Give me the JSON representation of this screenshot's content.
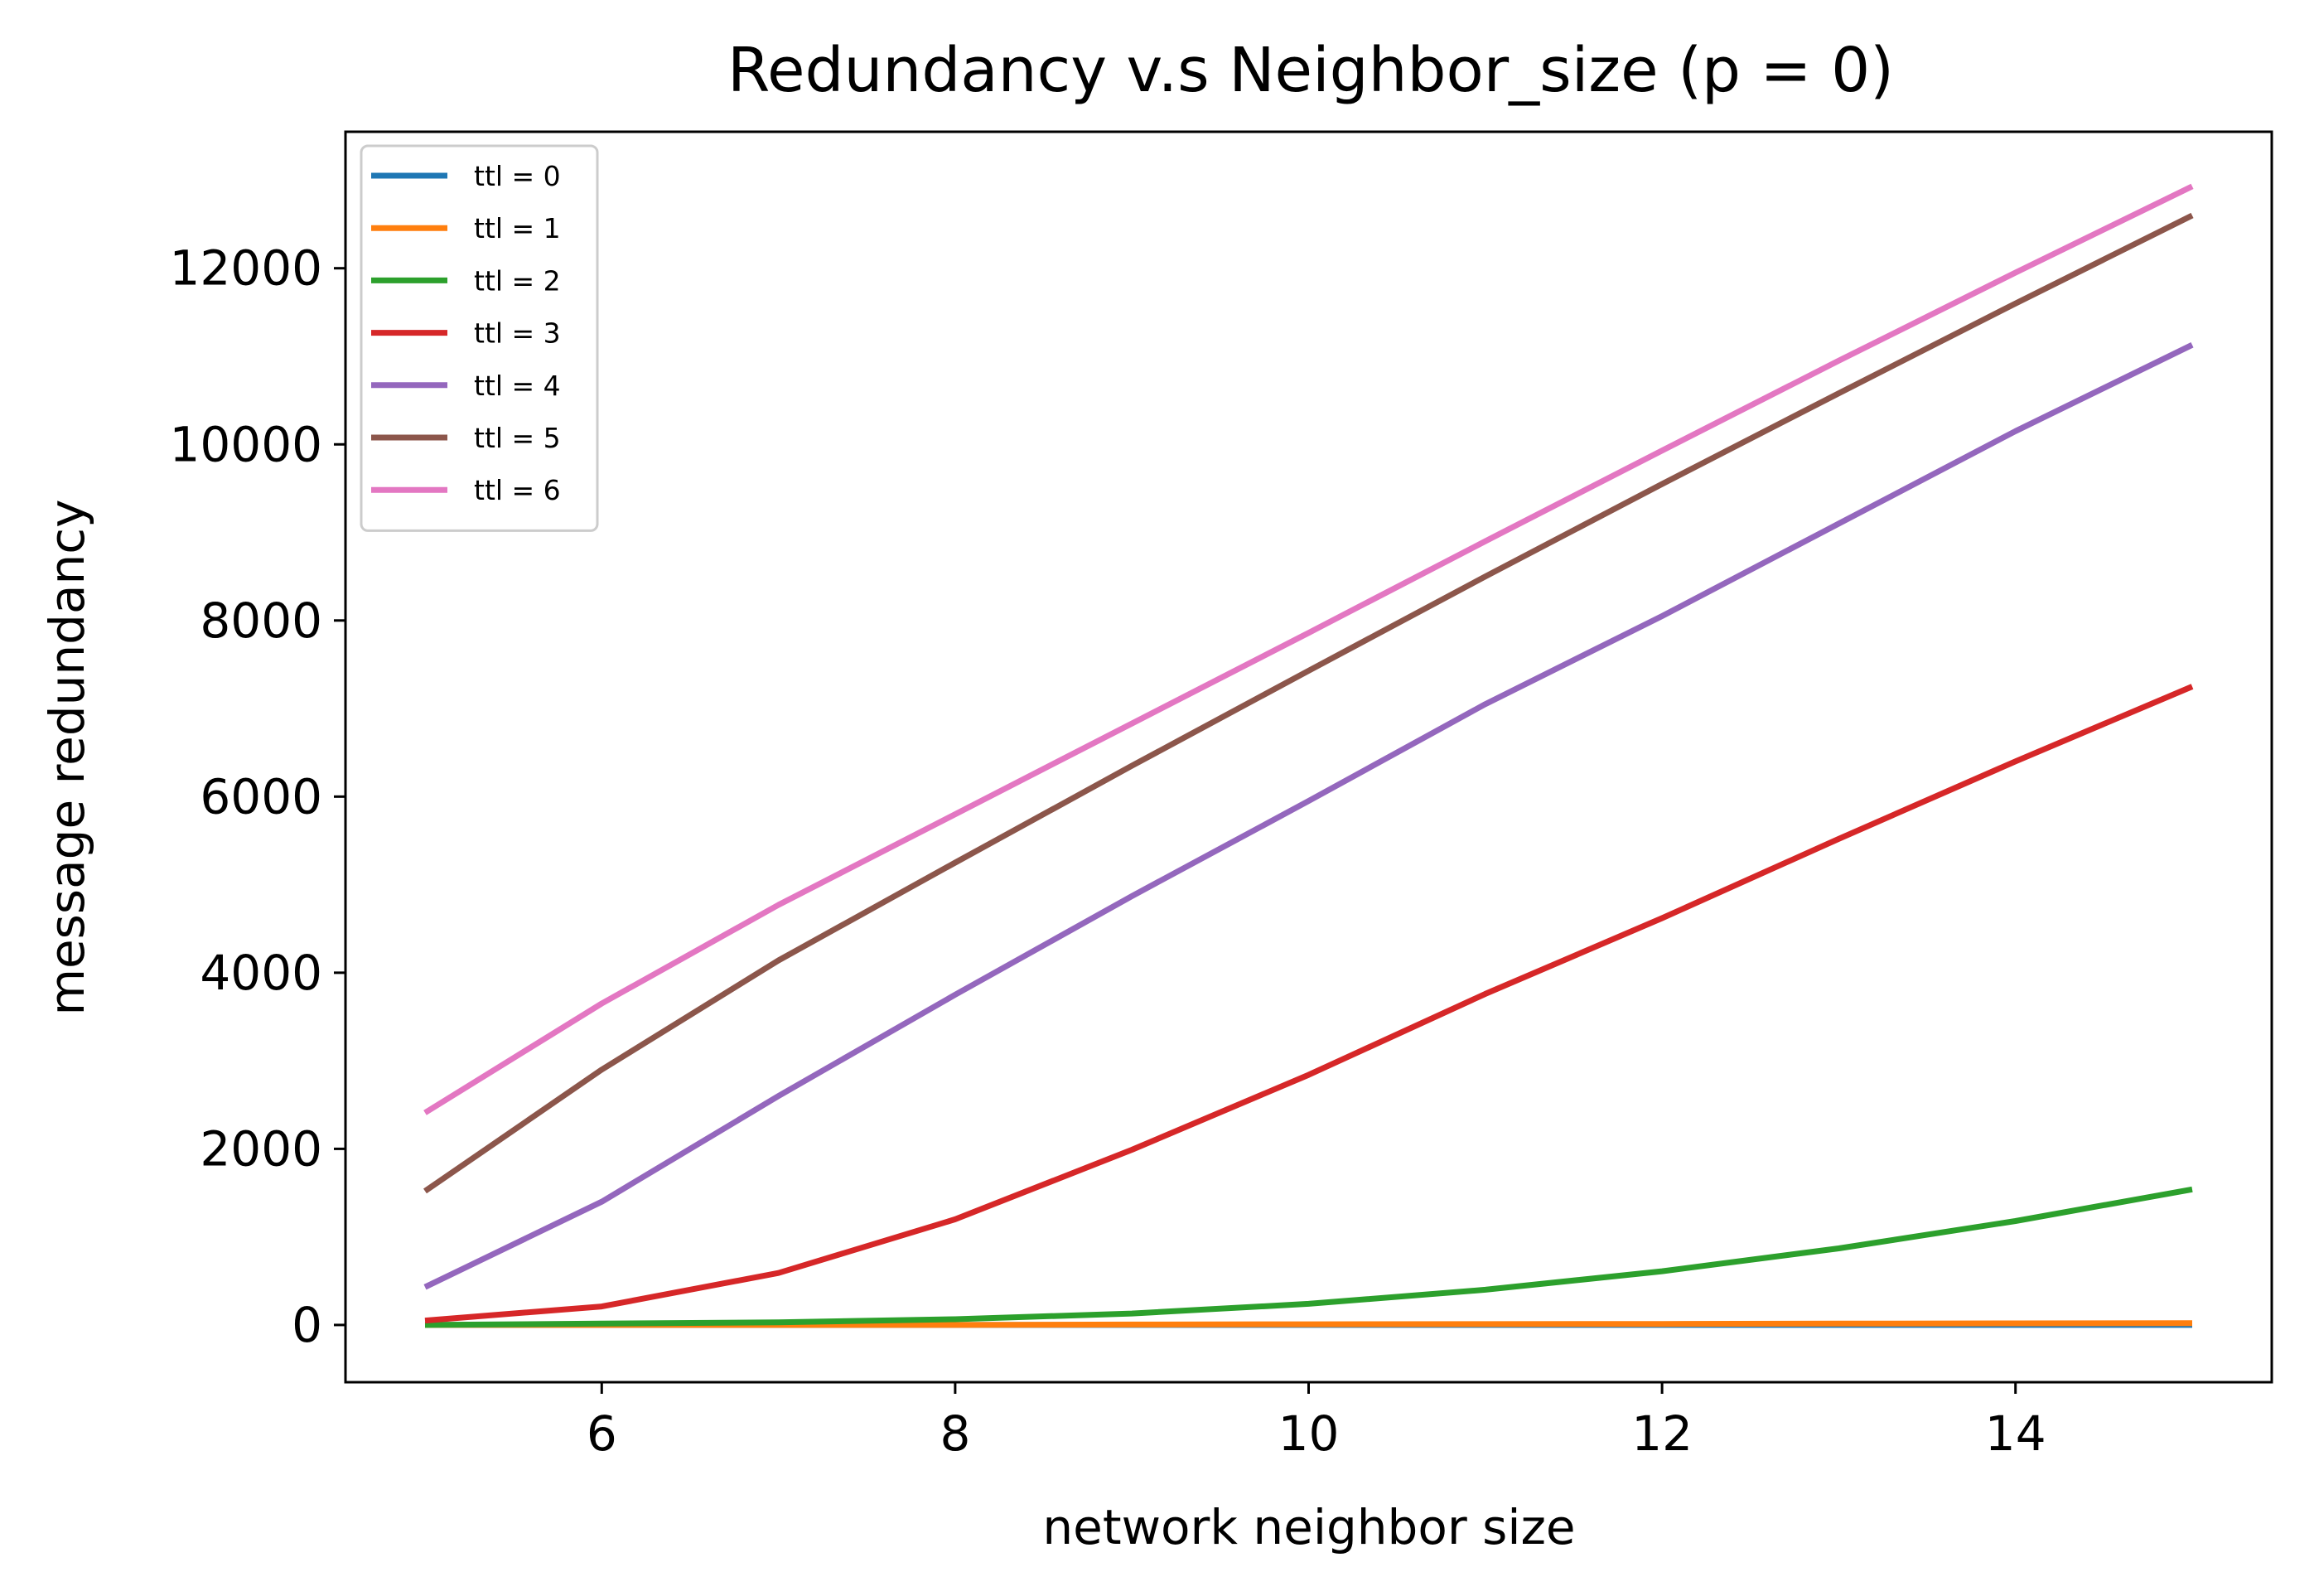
{
  "chart_data": {
    "type": "line",
    "title": "Redundancy v.s Neighbor_size (p = 0)",
    "xlabel": "network neighbor size",
    "ylabel": "message redundancy",
    "x": [
      5,
      6,
      7,
      8,
      9,
      10,
      11,
      12,
      13,
      14,
      15
    ],
    "xlim": [
      4.55,
      15.45
    ],
    "ylim": [
      -650,
      13550
    ],
    "xticks": [
      6,
      8,
      10,
      12,
      14
    ],
    "yticks": [
      0,
      2000,
      4000,
      6000,
      8000,
      10000,
      12000
    ],
    "grid": false,
    "legend_position": "top-left",
    "series": [
      {
        "name": "ttl = 0",
        "color": "#1f77b4",
        "values": [
          0,
          0,
          0,
          0,
          0,
          0,
          0,
          0,
          0,
          0,
          0
        ]
      },
      {
        "name": "ttl = 1",
        "color": "#ff7f0e",
        "values": [
          0,
          0,
          0,
          0,
          5,
          8,
          10,
          12,
          15,
          18,
          20
        ]
      },
      {
        "name": "ttl = 2",
        "color": "#2ca02c",
        "values": [
          0,
          15,
          30,
          65,
          130,
          240,
          400,
          610,
          870,
          1180,
          1540
        ]
      },
      {
        "name": "ttl = 3",
        "color": "#d62728",
        "values": [
          50,
          210,
          590,
          1200,
          1990,
          2840,
          3760,
          4620,
          5520,
          6400,
          7250
        ]
      },
      {
        "name": "ttl = 4",
        "color": "#9467bd",
        "values": [
          430,
          1400,
          2600,
          3750,
          4870,
          5950,
          7050,
          8050,
          9100,
          10150,
          11130
        ]
      },
      {
        "name": "ttl = 5",
        "color": "#8c564b",
        "values": [
          1520,
          2900,
          4140,
          5250,
          6350,
          7430,
          8500,
          9550,
          10580,
          11600,
          12600
        ]
      },
      {
        "name": "ttl = 6",
        "color": "#e377c2",
        "values": [
          2410,
          3650,
          4770,
          5800,
          6830,
          7860,
          8900,
          9930,
          10950,
          11950,
          12930
        ]
      }
    ]
  }
}
